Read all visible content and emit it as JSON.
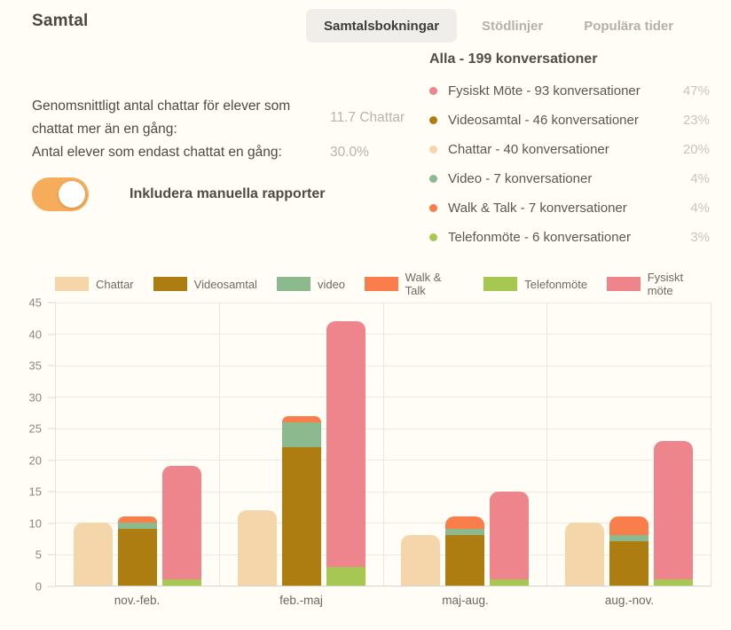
{
  "header": {
    "title": "Samtal",
    "tabs": [
      {
        "label": "Samtalsbokningar",
        "active": true
      },
      {
        "label": "Stödlinjer",
        "active": false
      },
      {
        "label": "Populära tider",
        "active": false
      }
    ]
  },
  "stats": [
    {
      "label": "Genomsnittligt antal chattar för elever som chattat mer än en gång:",
      "value": "11.7 Chattar"
    },
    {
      "label": "Antal elever som endast chattat en gång:",
      "value": "30.0%"
    }
  ],
  "toggle": {
    "label": "Inkludera manuella rapporter",
    "state": "on",
    "color": "#f6ac5a"
  },
  "summary": {
    "title": "Alla - 199 konversationer",
    "items": [
      {
        "label": "Fysiskt Möte - 93 konversationer",
        "percent": "47%",
        "color": "#ee848c"
      },
      {
        "label": "Videosamtal - 46 konversationer",
        "percent": "23%",
        "color": "#ad7d11"
      },
      {
        "label": "Chattar - 40 konversationer",
        "percent": "20%",
        "color": "#f4d6aa"
      },
      {
        "label": "Video - 7 konversationer",
        "percent": "4%",
        "color": "#8cb98e"
      },
      {
        "label": "Walk & Talk - 7 konversationer",
        "percent": "4%",
        "color": "#fa7e4b"
      },
      {
        "label": "Telefonmöte - 6 konversationer",
        "percent": "3%",
        "color": "#a6c852"
      }
    ]
  },
  "chart_data": {
    "type": "bar",
    "title": "",
    "xlabel": "",
    "ylabel": "",
    "categories": [
      "nov.-feb.",
      "feb.-maj",
      "maj-aug.",
      "aug.-nov."
    ],
    "legend": [
      {
        "label": "Chattar",
        "color": "#f4d6aa"
      },
      {
        "label": "Videosamtal",
        "color": "#ad7d11"
      },
      {
        "label": "video",
        "color": "#8cb98e"
      },
      {
        "label": "Walk & Talk",
        "color": "#fa7e4b"
      },
      {
        "label": "Telefonmöte",
        "color": "#a6c852"
      },
      {
        "label": "Fysiskt möte",
        "color": "#ee848c"
      }
    ],
    "legend_position": "top-center",
    "grid": true,
    "ylim": [
      0,
      45
    ],
    "yticks": [
      0,
      5,
      10,
      15,
      20,
      25,
      30,
      35,
      40,
      45
    ],
    "bars": [
      [
        [
          {
            "series": "Chattar",
            "value": 10
          }
        ],
        [
          {
            "series": "Videosamtal",
            "value": 9
          },
          {
            "series": "video",
            "value": 1
          },
          {
            "series": "Walk & Talk",
            "value": 1
          }
        ],
        [
          {
            "series": "Telefonmöte",
            "value": 1
          },
          {
            "series": "Fysiskt möte",
            "value": 18
          }
        ]
      ],
      [
        [
          {
            "series": "Chattar",
            "value": 12
          }
        ],
        [
          {
            "series": "Videosamtal",
            "value": 22
          },
          {
            "series": "video",
            "value": 4
          },
          {
            "series": "Walk & Talk",
            "value": 1
          }
        ],
        [
          {
            "series": "Telefonmöte",
            "value": 3
          },
          {
            "series": "Fysiskt möte",
            "value": 39
          }
        ]
      ],
      [
        [
          {
            "series": "Chattar",
            "value": 8
          }
        ],
        [
          {
            "series": "Videosamtal",
            "value": 8
          },
          {
            "series": "video",
            "value": 1
          },
          {
            "series": "Walk & Talk",
            "value": 2
          }
        ],
        [
          {
            "series": "Telefonmöte",
            "value": 1
          },
          {
            "series": "Fysiskt möte",
            "value": 14
          }
        ]
      ],
      [
        [
          {
            "series": "Chattar",
            "value": 10
          }
        ],
        [
          {
            "series": "Videosamtal",
            "value": 7
          },
          {
            "series": "video",
            "value": 1
          },
          {
            "series": "Walk & Talk",
            "value": 3
          }
        ],
        [
          {
            "series": "Telefonmöte",
            "value": 1
          },
          {
            "series": "Fysiskt möte",
            "value": 22
          }
        ]
      ]
    ]
  }
}
